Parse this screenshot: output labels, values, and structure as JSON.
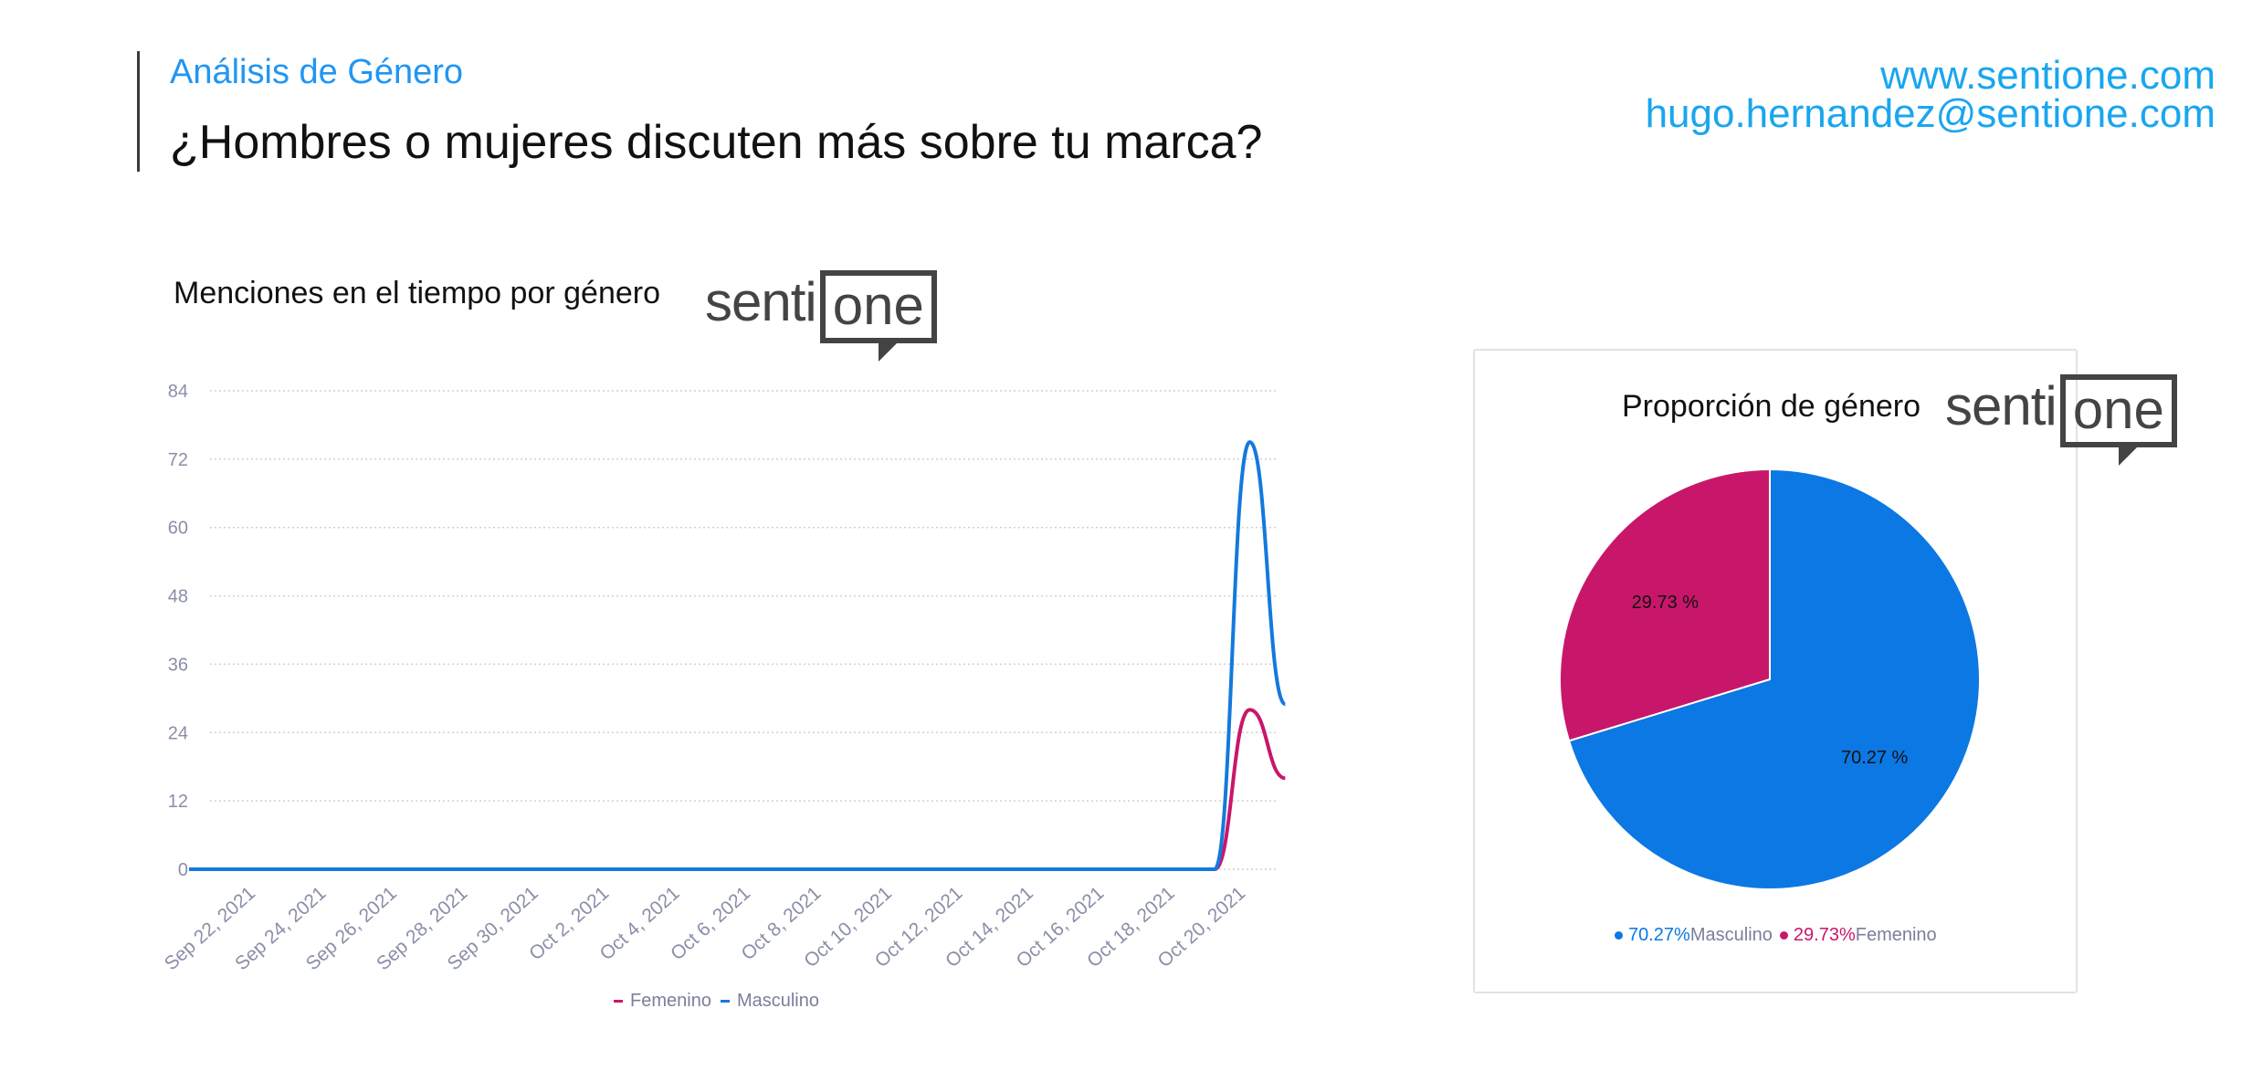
{
  "header": {
    "section_label": "Análisis de Género",
    "headline": "¿Hombres o mujeres discuten más sobre tu marca?",
    "website": "www.sentione.com",
    "email": "hugo.hernandez@sentione.com"
  },
  "brand": {
    "logo_left": "senti",
    "logo_box": "one",
    "color": "#444444"
  },
  "colors": {
    "accent": "#2196f3",
    "femenino": "#c8176b",
    "masculino": "#1479dd",
    "pie_masculino": "#0b78e3"
  },
  "chart_data": [
    {
      "type": "line",
      "title": "Menciones en el tiempo por género",
      "xlabel": "",
      "ylabel": "",
      "ylim": [
        0,
        84
      ],
      "yticks": [
        0,
        12,
        24,
        36,
        48,
        60,
        72,
        84
      ],
      "grid": true,
      "legend_position": "bottom",
      "x": [
        "2021-09-21",
        "2021-09-22",
        "2021-09-23",
        "2021-09-24",
        "2021-09-25",
        "2021-09-26",
        "2021-09-27",
        "2021-09-28",
        "2021-09-29",
        "2021-09-30",
        "2021-10-01",
        "2021-10-02",
        "2021-10-03",
        "2021-10-04",
        "2021-10-05",
        "2021-10-06",
        "2021-10-07",
        "2021-10-08",
        "2021-10-09",
        "2021-10-10",
        "2021-10-11",
        "2021-10-12",
        "2021-10-13",
        "2021-10-14",
        "2021-10-15",
        "2021-10-16",
        "2021-10-17",
        "2021-10-18",
        "2021-10-19",
        "2021-10-20",
        "2021-10-21",
        "2021-10-22"
      ],
      "x_tick_labels": [
        "Sep 22, 2021",
        "Sep 24, 2021",
        "Sep 26, 2021",
        "Sep 28, 2021",
        "Sep 30, 2021",
        "Oct 2, 2021",
        "Oct 4, 2021",
        "Oct 6, 2021",
        "Oct 8, 2021",
        "Oct 10, 2021",
        "Oct 12, 2021",
        "Oct 14, 2021",
        "Oct 16, 2021",
        "Oct 18, 2021",
        "Oct 20, 2021"
      ],
      "series": [
        {
          "name": "Femenino",
          "color": "#c8176b",
          "values": [
            0,
            0,
            0,
            0,
            0,
            0,
            0,
            0,
            0,
            0,
            0,
            0,
            0,
            0,
            0,
            0,
            0,
            0,
            0,
            0,
            0,
            0,
            0,
            0,
            0,
            0,
            0,
            0,
            0,
            0,
            28,
            16
          ]
        },
        {
          "name": "Masculino",
          "color": "#1479dd",
          "values": [
            0,
            0,
            0,
            0,
            0,
            0,
            0,
            0,
            0,
            0,
            0,
            0,
            0,
            0,
            0,
            0,
            0,
            0,
            0,
            0,
            0,
            0,
            0,
            0,
            0,
            0,
            0,
            0,
            0,
            0,
            75,
            29
          ]
        }
      ]
    },
    {
      "type": "pie",
      "title": "Proporción de género",
      "legend_position": "bottom",
      "slices": [
        {
          "name": "Masculino",
          "value": 70.27,
          "label": "70.27 %",
          "legend_value": "70.27%",
          "color": "#0b78e3"
        },
        {
          "name": "Femenino",
          "value": 29.73,
          "label": "29.73 %",
          "legend_value": "29.73%",
          "color": "#c8176b"
        }
      ]
    }
  ]
}
